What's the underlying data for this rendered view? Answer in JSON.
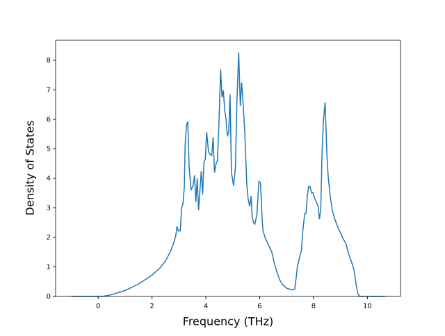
{
  "chart_data": {
    "type": "line",
    "xlabel": "Frequency (THz)",
    "ylabel": "Density of States",
    "color": "#1f77b4",
    "x": [
      -1,
      -0.5,
      0,
      0.2,
      0.5,
      1,
      1.5,
      2,
      2.3,
      2.5,
      2.7,
      2.8,
      2.88,
      2.93,
      2.98,
      3.05,
      3.1,
      3.15,
      3.2,
      3.23,
      3.28,
      3.33,
      3.38,
      3.45,
      3.52,
      3.58,
      3.63,
      3.68,
      3.73,
      3.78,
      3.83,
      3.88,
      3.93,
      3.98,
      4.03,
      4.1,
      4.17,
      4.22,
      4.27,
      4.32,
      4.38,
      4.43,
      4.48,
      4.55,
      4.6,
      4.65,
      4.7,
      4.75,
      4.8,
      4.85,
      4.9,
      4.95,
      5.03,
      5.1,
      5.15,
      5.22,
      5.28,
      5.33,
      5.38,
      5.45,
      5.52,
      5.57,
      5.63,
      5.68,
      5.72,
      5.77,
      5.82,
      5.9,
      5.97,
      6.03,
      6.1,
      6.13,
      6.2,
      6.3,
      6.45,
      6.55,
      6.65,
      6.75,
      6.85,
      7.0,
      7.2,
      7.3,
      7.35,
      7.4,
      7.5,
      7.55,
      7.6,
      7.67,
      7.72,
      7.77,
      7.82,
      7.87,
      7.93,
      7.98,
      8.03,
      8.1,
      8.17,
      8.22,
      8.27,
      8.32,
      8.37,
      8.43,
      8.5,
      8.55,
      8.62,
      8.7,
      8.8,
      8.9,
      9.0,
      9.1,
      9.2,
      9.3,
      9.4,
      9.5,
      9.6,
      9.65,
      9.72,
      9.8,
      10.65
    ],
    "values": [
      0,
      0,
      0,
      0.01,
      0.06,
      0.2,
      0.42,
      0.72,
      0.97,
      1.2,
      1.55,
      1.8,
      2.05,
      2.37,
      2.22,
      2.22,
      3.0,
      3.15,
      3.7,
      5.1,
      5.8,
      5.93,
      4.4,
      3.6,
      3.75,
      4.1,
      3.2,
      4.0,
      2.92,
      3.6,
      4.25,
      3.45,
      4.55,
      4.65,
      5.57,
      4.9,
      4.8,
      4.78,
      5.4,
      4.2,
      4.5,
      4.6,
      5.7,
      7.7,
      6.75,
      6.98,
      6.3,
      6.0,
      5.45,
      5.55,
      6.85,
      4.2,
      3.75,
      4.4,
      6.5,
      8.27,
      6.45,
      7.25,
      6.6,
      5.5,
      3.8,
      3.3,
      3.05,
      3.4,
      2.7,
      2.5,
      2.45,
      2.8,
      3.9,
      3.85,
      2.45,
      2.2,
      2.0,
      1.8,
      1.5,
      1.1,
      0.8,
      0.55,
      0.4,
      0.28,
      0.22,
      0.25,
      0.6,
      1.0,
      1.4,
      1.55,
      2.2,
      2.8,
      2.82,
      3.4,
      3.73,
      3.72,
      3.5,
      3.52,
      3.35,
      3.2,
      3.05,
      2.62,
      3.0,
      5.0,
      6.0,
      6.58,
      4.7,
      4.0,
      3.4,
      2.9,
      2.6,
      2.35,
      2.15,
      1.95,
      1.8,
      1.45,
      1.2,
      0.92,
      0.3,
      0.08,
      0,
      0,
      0
    ],
    "xlim": [
      -1.58,
      11.23
    ],
    "ylim": [
      0,
      8.68
    ],
    "xticks": [
      0,
      2,
      4,
      6,
      8,
      10
    ],
    "yticks": [
      0,
      1,
      2,
      3,
      4,
      5,
      6,
      7,
      8
    ]
  }
}
